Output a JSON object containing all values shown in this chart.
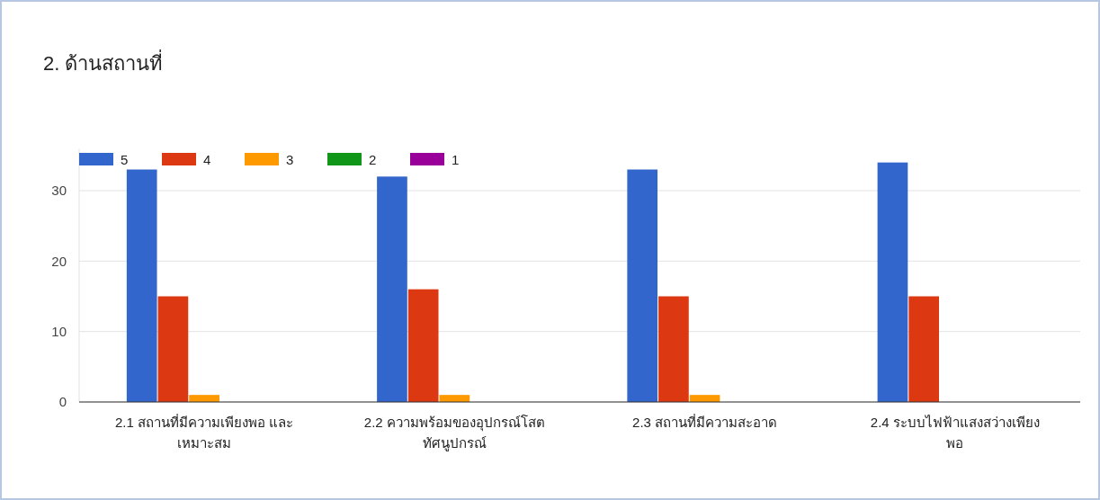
{
  "chart_data": {
    "type": "bar",
    "title": "2. ด้านสถานที่",
    "categories": [
      "2.1 สถานที่มีความเพียงพอ และ\nเหมาะสม",
      "2.2 ความพร้อมของอุปกรณ์โสต\nทัศนูปกรณ์",
      "2.3 สถานที่มีความสะอาด",
      "2.4 ระบบไฟฟ้าแสงสว่างเพียง\nพอ"
    ],
    "series": [
      {
        "name": "5",
        "color": "#3366cc",
        "values": [
          33,
          32,
          33,
          34
        ]
      },
      {
        "name": "4",
        "color": "#dc3912",
        "values": [
          15,
          16,
          15,
          15
        ]
      },
      {
        "name": "3",
        "color": "#ff9900",
        "values": [
          1,
          1,
          1,
          0
        ]
      },
      {
        "name": "2",
        "color": "#109618",
        "values": [
          0,
          0,
          0,
          0
        ]
      },
      {
        "name": "1",
        "color": "#990099",
        "values": [
          0,
          0,
          0,
          0
        ]
      }
    ],
    "ylim": [
      0,
      36
    ],
    "yticks": [
      0,
      10,
      20,
      30
    ],
    "grid": "y",
    "legend": "top left"
  }
}
